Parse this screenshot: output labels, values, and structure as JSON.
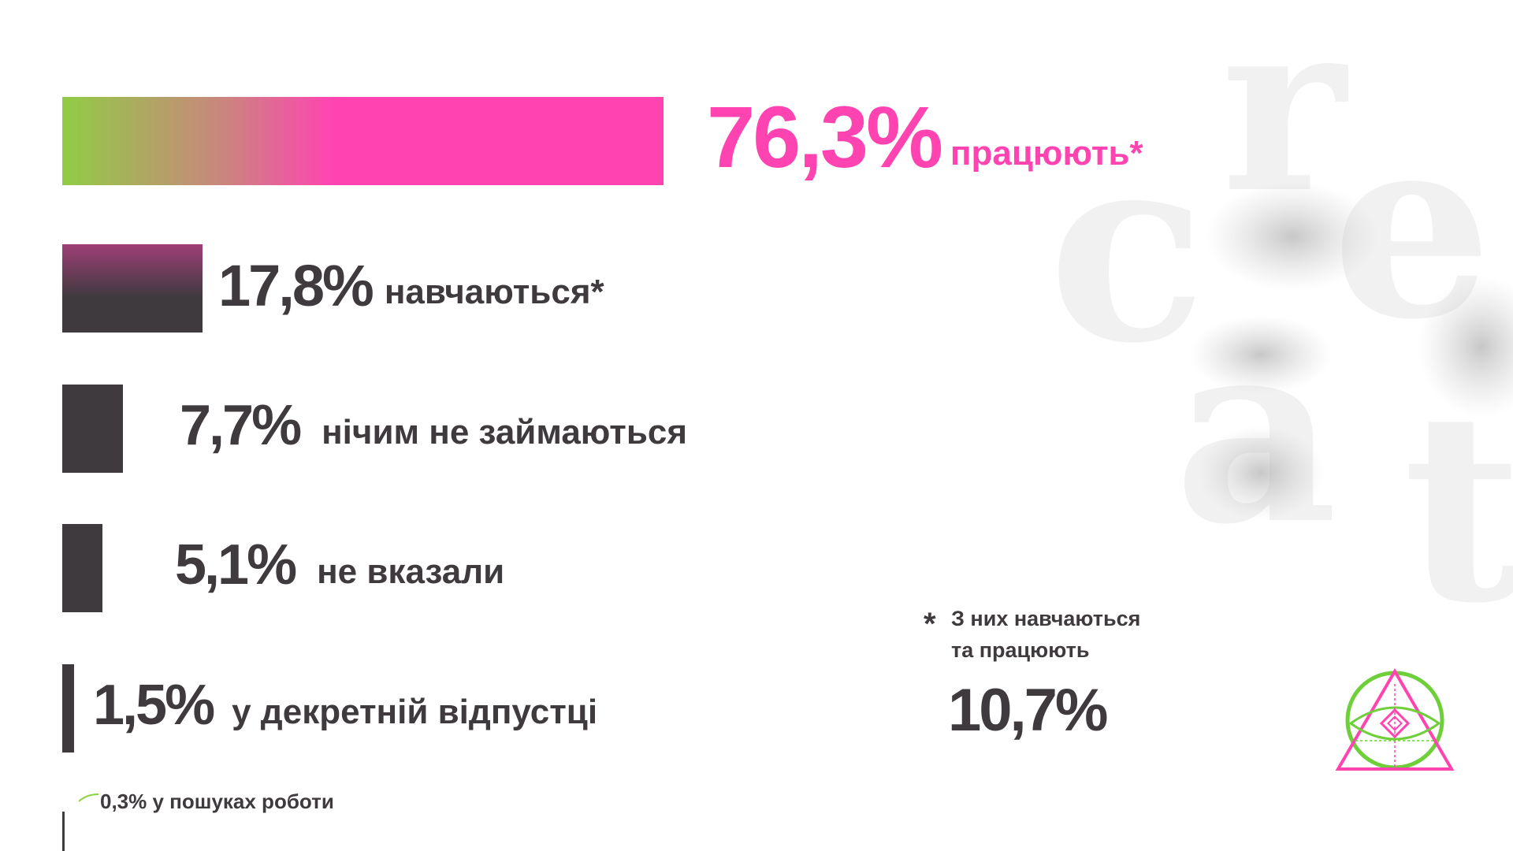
{
  "chart_data": {
    "type": "bar",
    "orientation": "horizontal",
    "categories": [
      "працюють*",
      "навчаються*",
      "нічим не займаються",
      "не вказали",
      "у декретній відпустці",
      "у пошуках роботи"
    ],
    "values": [
      76.3,
      17.8,
      7.7,
      5.1,
      1.5,
      0.3
    ],
    "value_labels": [
      "76,3%",
      "17,8%",
      "7,7%",
      "5,1%",
      "1,5%",
      "0,3%"
    ],
    "unit": "%",
    "xlim": [
      0,
      76.3
    ],
    "grid": false,
    "legend": "none",
    "colors": {
      "highlight": "#ff44b2",
      "dark": "#3f3a3e",
      "green": "#8bd33f"
    },
    "footnote": {
      "marker": "*",
      "line1": "З них навчаються",
      "line2": "та працюють",
      "value": "10,7%"
    }
  },
  "decor": {
    "background_letters": [
      "c",
      "r",
      "e",
      "a",
      "t"
    ],
    "logo_icon": "eye-triangle-icon"
  }
}
